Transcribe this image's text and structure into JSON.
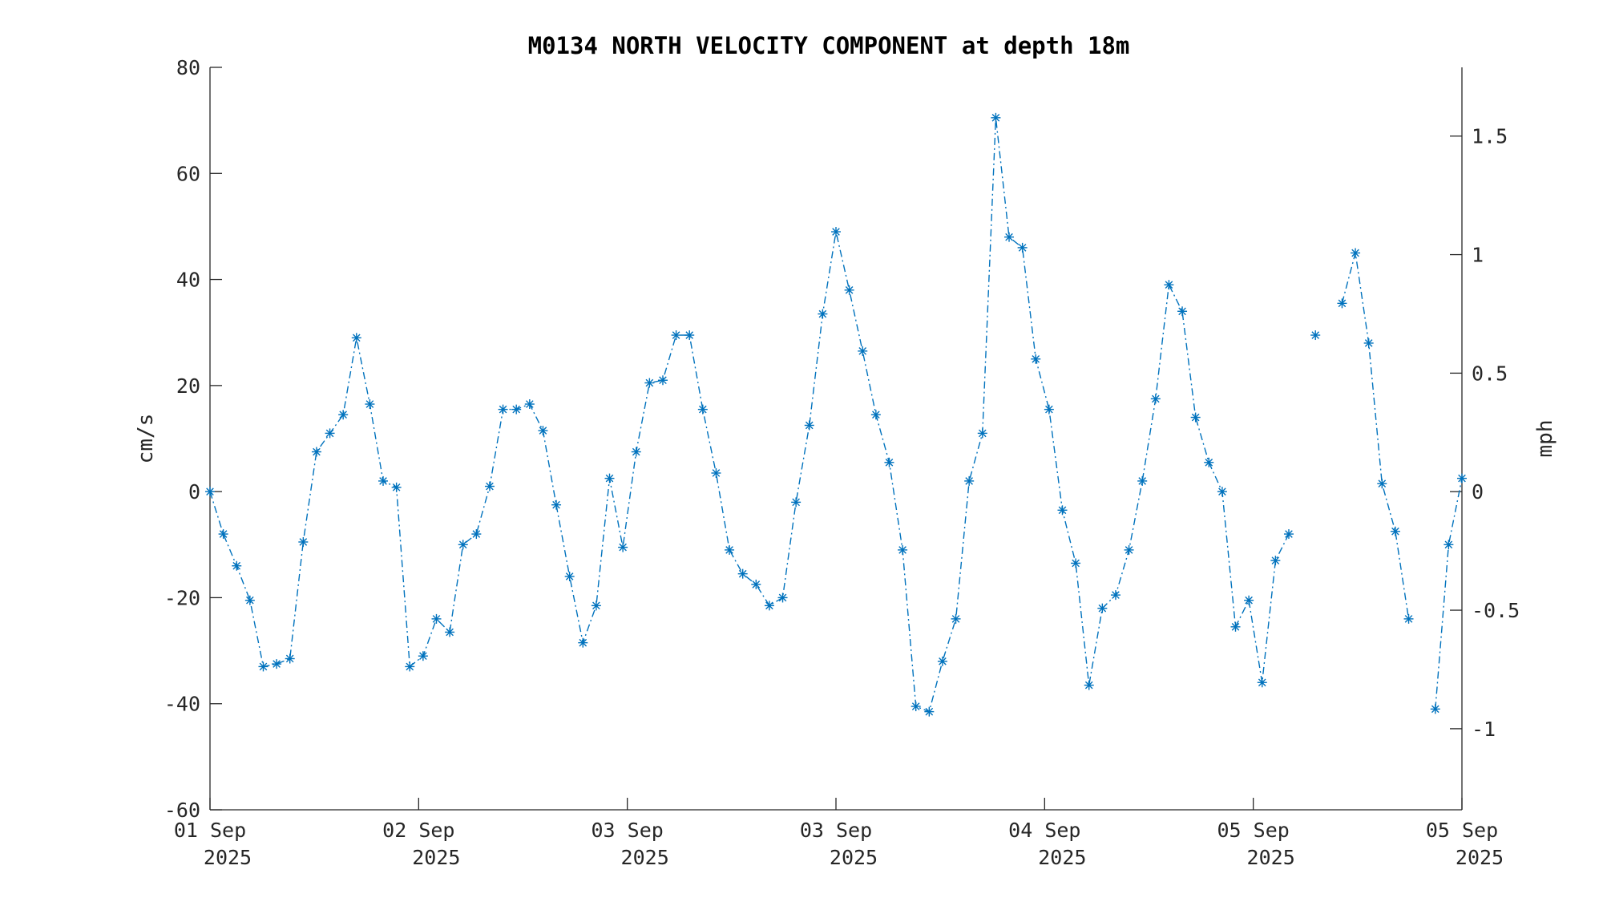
{
  "chart_data": {
    "type": "line",
    "title": "M0134 NORTH VELOCITY COMPONENT at depth 18m",
    "ylabel": "cm/s",
    "y2label": "mph",
    "ylim": [
      -60,
      80
    ],
    "y2lim": [
      -1.342,
      1.79
    ],
    "yticks": [
      "80",
      "60",
      "40",
      "20",
      "0",
      "-20",
      "-40",
      "-60"
    ],
    "y2ticks": [
      "1.5",
      "1",
      "0.5",
      "0",
      "-0.5",
      "-1"
    ],
    "xticks": [
      {
        "day": "01 Sep",
        "year": "2025"
      },
      {
        "day": "02 Sep",
        "year": "2025"
      },
      {
        "day": "03 Sep",
        "year": "2025"
      },
      {
        "day": "03 Sep",
        "year": "2025"
      },
      {
        "day": "04 Sep",
        "year": "2025"
      },
      {
        "day": "05 Sep",
        "year": "2025"
      },
      {
        "day": "05 Sep",
        "year": "2025"
      }
    ],
    "series_color": "#0072BD",
    "grid": false,
    "legend": "none",
    "series": [
      {
        "values": [
          0,
          -8,
          -14,
          -20.5,
          -33,
          -32.5,
          -31.5,
          -9.5,
          7.5,
          11,
          14.5,
          29,
          16.5,
          2,
          0.8,
          -33,
          -31,
          -24,
          -26.5,
          -10,
          -8,
          1,
          15.5,
          15.5,
          16.5,
          11.5,
          -2.5,
          -16,
          -28.5,
          -21.5,
          2.5,
          -10.5,
          7.5,
          20.5,
          21,
          29.5,
          29.5,
          15.5,
          3.5,
          -11,
          -15.5,
          -17.5,
          -21.5,
          -20,
          -2,
          12.5,
          33.5,
          49,
          38,
          26.5,
          14.5,
          5.5,
          -11,
          -40.5,
          -41.5,
          -32,
          -24,
          2,
          11,
          70.5,
          48,
          46,
          25,
          15.5,
          -3.5,
          -13.5,
          -36.5,
          -22,
          -19.5,
          -11,
          2,
          17.5,
          39,
          34,
          14,
          5.5,
          0,
          -25.5,
          -20.5,
          -36,
          -13,
          -8,
          null,
          29.5,
          null,
          35.5,
          45,
          28,
          1.5,
          -7.5,
          -24,
          null,
          -41,
          -10,
          2.5
        ]
      }
    ]
  }
}
